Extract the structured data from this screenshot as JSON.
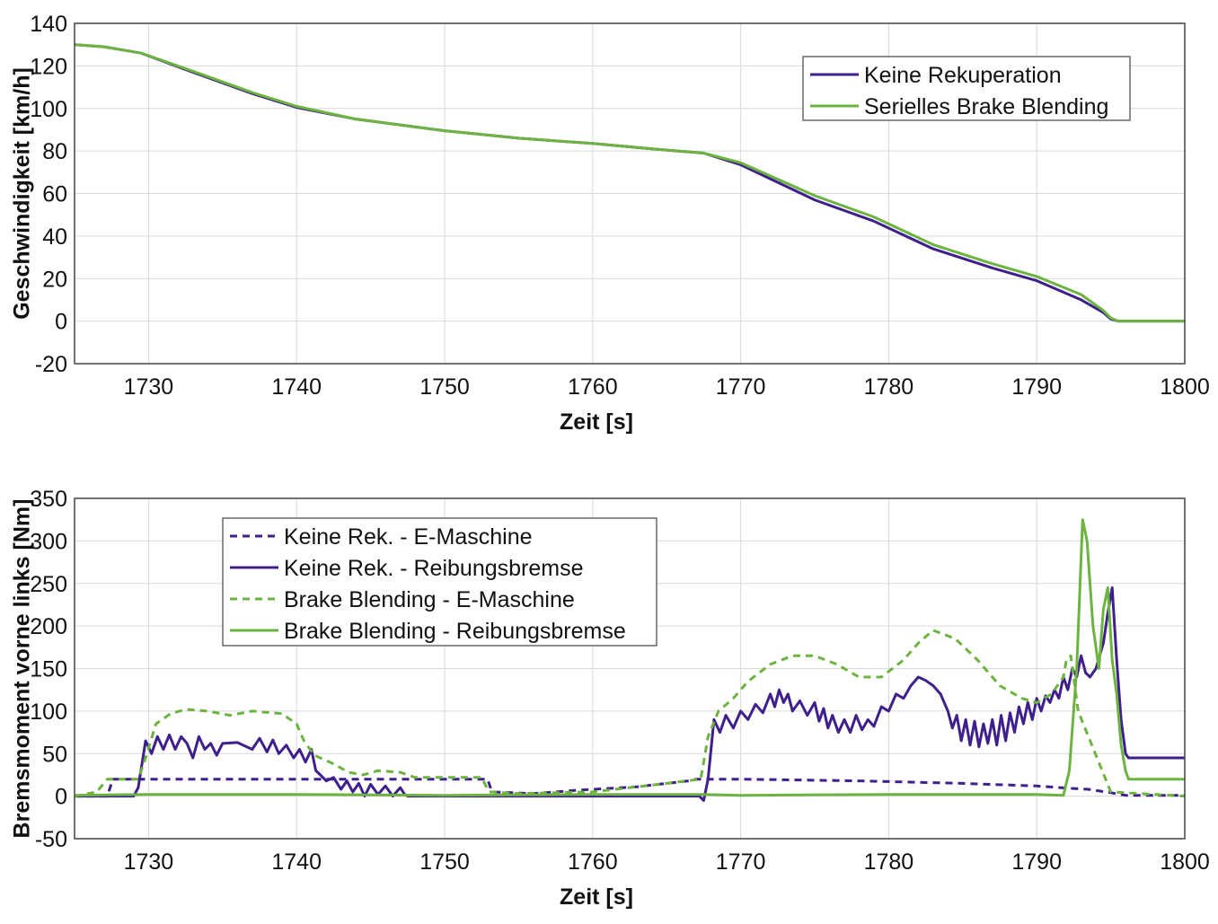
{
  "colors": {
    "purple": "#3f1f8c",
    "green": "#6db33f"
  },
  "chart_data": [
    {
      "type": "line",
      "title": "",
      "xlabel": "Zeit [s]",
      "ylabel": "Geschwindigkeit [km/h]",
      "xlim": [
        1725,
        1800
      ],
      "ylim": [
        -20,
        140
      ],
      "xticks": [
        1730,
        1740,
        1750,
        1760,
        1770,
        1780,
        1790,
        1800
      ],
      "yticks": [
        -20,
        0,
        20,
        40,
        60,
        80,
        100,
        120,
        140
      ],
      "grid": true,
      "legend_position": "top-right",
      "series": [
        {
          "name": "Keine Rekuperation",
          "color": "#3f1f8c",
          "style": "solid",
          "x": [
            1725,
            1727,
            1729.5,
            1733,
            1737,
            1740,
            1744,
            1750,
            1755,
            1760,
            1764,
            1767.5,
            1770,
            1775,
            1779,
            1783,
            1787,
            1790,
            1793,
            1794.5,
            1795,
            1795.5,
            1800
          ],
          "y": [
            130,
            129,
            126,
            117,
            107,
            100.5,
            95,
            89.5,
            86,
            83.5,
            81,
            79,
            73.5,
            57,
            47,
            34,
            25,
            19,
            10,
            4,
            1,
            0,
            0
          ]
        },
        {
          "name": "Serielles Brake Blending",
          "color": "#6db33f",
          "style": "solid",
          "x": [
            1725,
            1727,
            1729.5,
            1733,
            1737,
            1740,
            1744,
            1750,
            1755,
            1760,
            1764,
            1767.5,
            1770,
            1775,
            1779,
            1783,
            1787,
            1790,
            1793,
            1794.5,
            1795,
            1795.5,
            1800
          ],
          "y": [
            130,
            129,
            126,
            117.5,
            107.5,
            101,
            95,
            89.5,
            86,
            83.5,
            81,
            79,
            74.5,
            59,
            49,
            36,
            27,
            21,
            12.5,
            5,
            1.5,
            0,
            0
          ]
        }
      ]
    },
    {
      "type": "line",
      "title": "",
      "xlabel": "Zeit [s]",
      "ylabel": "Bremsmoment vorne links [Nm]",
      "xlim": [
        1725,
        1800
      ],
      "ylim": [
        -50,
        350
      ],
      "xticks": [
        1730,
        1740,
        1750,
        1760,
        1770,
        1780,
        1790,
        1800
      ],
      "yticks": [
        -50,
        0,
        50,
        100,
        150,
        200,
        250,
        300,
        350
      ],
      "grid": true,
      "legend_position": "top-left",
      "series": [
        {
          "name": "Keine Rek. - E-Maschine",
          "color": "#3f1f8c",
          "style": "dashed",
          "x": [
            1725,
            1727.2,
            1727.6,
            1740,
            1750,
            1752.9,
            1753.2,
            1756,
            1759,
            1763,
            1766.5,
            1767,
            1770,
            1778,
            1785,
            1790,
            1792.5,
            1793.5,
            1795,
            1796,
            1800
          ],
          "y": [
            0,
            0,
            20,
            20,
            20,
            20,
            5,
            3,
            7,
            11,
            18,
            20,
            20,
            18,
            15,
            12,
            9,
            8,
            4,
            1,
            1
          ]
        },
        {
          "name": "Keine Rek. - Reibungsbremse",
          "color": "#3f1f8c",
          "style": "solid",
          "x": [
            1725,
            1729,
            1729.3,
            1729.8,
            1730.2,
            1730.6,
            1731,
            1731.4,
            1731.8,
            1732.2,
            1732.6,
            1733,
            1733.4,
            1733.8,
            1734.2,
            1734.6,
            1735,
            1736,
            1737,
            1737.5,
            1738,
            1738.4,
            1738.8,
            1739.3,
            1739.8,
            1740.2,
            1740.6,
            1741,
            1741.3,
            1741.6,
            1742,
            1742.5,
            1743,
            1743.4,
            1743.8,
            1744.2,
            1744.6,
            1745,
            1745.5,
            1746,
            1746.5,
            1747,
            1747.3,
            1747.5,
            1750,
            1767.2,
            1767.5,
            1767.8,
            1768.2,
            1768.6,
            1769,
            1769.5,
            1770,
            1770.5,
            1771,
            1771.5,
            1772,
            1772.3,
            1772.6,
            1772.9,
            1773.2,
            1773.5,
            1774,
            1774.5,
            1775,
            1775.3,
            1775.6,
            1775.9,
            1776.2,
            1776.6,
            1777,
            1777.4,
            1777.8,
            1778.2,
            1778.6,
            1779,
            1779.5,
            1780,
            1780.5,
            1781,
            1781.5,
            1782,
            1782.5,
            1783,
            1783.5,
            1784,
            1784.3,
            1784.6,
            1784.9,
            1785.2,
            1785.5,
            1785.8,
            1786.1,
            1786.4,
            1786.7,
            1787,
            1787.3,
            1787.6,
            1787.9,
            1788.2,
            1788.5,
            1788.8,
            1789.1,
            1789.4,
            1789.7,
            1790,
            1790.3,
            1790.6,
            1790.9,
            1791.2,
            1791.5,
            1791.8,
            1792.1,
            1792.4,
            1792.7,
            1793,
            1793.3,
            1793.6,
            1794,
            1794.5,
            1794.8,
            1795.1,
            1795.4,
            1795.7,
            1796,
            1796.2,
            1796.5,
            1800
          ],
          "y": [
            0,
            0,
            10,
            65,
            50,
            70,
            55,
            72,
            55,
            70,
            62,
            45,
            70,
            55,
            62,
            48,
            62,
            63,
            55,
            68,
            52,
            66,
            50,
            60,
            45,
            55,
            40,
            55,
            30,
            25,
            18,
            22,
            8,
            18,
            5,
            15,
            0,
            14,
            2,
            12,
            0,
            10,
            2,
            0,
            0,
            0,
            -5,
            20,
            90,
            75,
            95,
            80,
            100,
            90,
            108,
            98,
            120,
            105,
            125,
            110,
            120,
            100,
            112,
            95,
            110,
            88,
            103,
            80,
            95,
            75,
            90,
            75,
            95,
            78,
            90,
            82,
            105,
            100,
            120,
            115,
            130,
            140,
            136,
            130,
            120,
            100,
            80,
            95,
            65,
            90,
            60,
            88,
            58,
            85,
            62,
            90,
            60,
            95,
            65,
            98,
            75,
            105,
            85,
            110,
            90,
            115,
            100,
            118,
            110,
            125,
            115,
            140,
            125,
            150,
            140,
            165,
            145,
            140,
            150,
            180,
            215,
            245,
            160,
            90,
            50,
            45,
            45,
            45
          ]
        },
        {
          "name": "Brake Blending - E-Maschine",
          "color": "#6db33f",
          "style": "dashed",
          "x": [
            1725,
            1726.5,
            1727.2,
            1728,
            1729.3,
            1729.8,
            1730.5,
            1731.5,
            1732.5,
            1734,
            1735.5,
            1737,
            1739,
            1740,
            1740.5,
            1741.2,
            1742.5,
            1743.5,
            1744.5,
            1745.5,
            1747,
            1748,
            1752.5,
            1753,
            1755,
            1760,
            1765,
            1767.3,
            1767.8,
            1768.5,
            1769.5,
            1770.5,
            1772,
            1773.5,
            1775,
            1776.5,
            1778,
            1779.5,
            1781,
            1782,
            1783,
            1784.5,
            1786,
            1787.5,
            1789,
            1790,
            1791,
            1791.8,
            1792,
            1792.3,
            1792.8,
            1795,
            1800
          ],
          "y": [
            0,
            5,
            20,
            20,
            20,
            45,
            85,
            97,
            102,
            100,
            95,
            100,
            97,
            85,
            65,
            48,
            38,
            28,
            25,
            30,
            28,
            22,
            22,
            5,
            3,
            5,
            15,
            20,
            70,
            100,
            115,
            135,
            155,
            165,
            165,
            155,
            140,
            140,
            160,
            180,
            195,
            185,
            160,
            130,
            115,
            110,
            120,
            140,
            160,
            165,
            100,
            5,
            0
          ]
        },
        {
          "name": "Brake Blending - Reibungsbremse",
          "color": "#6db33f",
          "style": "solid",
          "x": [
            1725,
            1730,
            1740,
            1750,
            1760,
            1767.5,
            1770,
            1780,
            1790,
            1791.8,
            1792.2,
            1792.7,
            1793.1,
            1793.4,
            1793.8,
            1794.2,
            1794.5,
            1794.8,
            1795.1,
            1795.4,
            1795.7,
            1796,
            1796.2,
            1796.6,
            1800
          ],
          "y": [
            1,
            2,
            2,
            1,
            2,
            2,
            1,
            2,
            2,
            1,
            30,
            150,
            325,
            300,
            200,
            150,
            220,
            245,
            160,
            120,
            60,
            30,
            20,
            20,
            20
          ]
        }
      ]
    }
  ]
}
